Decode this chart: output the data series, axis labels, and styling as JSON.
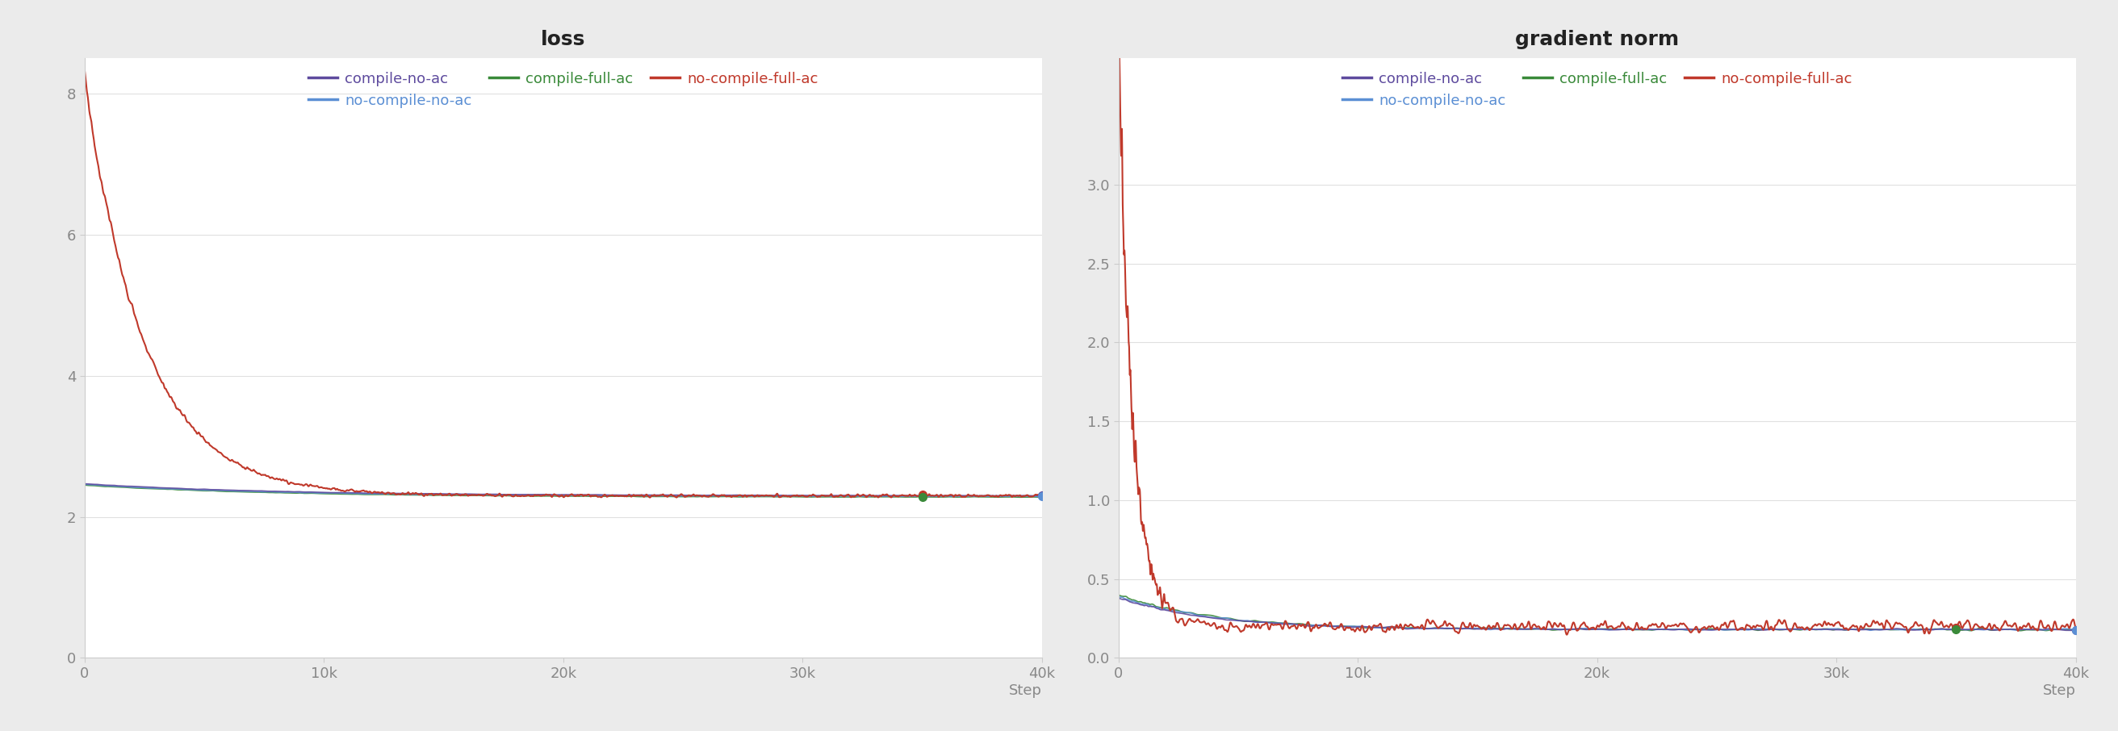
{
  "loss_title": "loss",
  "grad_title": "gradient norm",
  "colors": {
    "compile-no-ac": "#5e4b9e",
    "no-compile-no-ac": "#5b8fd4",
    "compile-full-ac": "#3a8a3a",
    "no-compile-full-ac": "#c0392b"
  },
  "x_label": "Step",
  "x_max": 40000,
  "loss_ylim": [
    0,
    8.5
  ],
  "loss_yticks": [
    0,
    2,
    4,
    6,
    8
  ],
  "grad_ylim": [
    0,
    3.8
  ],
  "grad_yticks": [
    0,
    0.5,
    1.0,
    1.5,
    2.0,
    2.5,
    3.0
  ],
  "outer_bg": "#ebebeb",
  "panel_bg": "#ffffff",
  "grid_color": "#e0e0e0",
  "fig_width": 26.24,
  "fig_height": 9.06
}
